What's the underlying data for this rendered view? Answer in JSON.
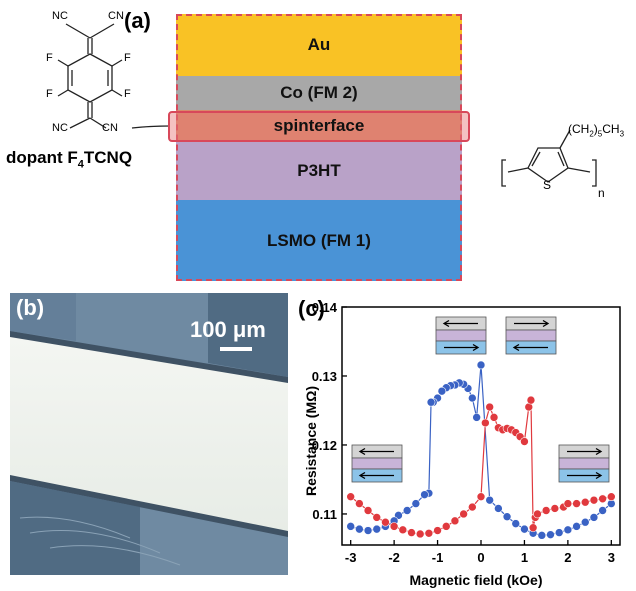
{
  "panel_a": {
    "label": "(a)",
    "layers": [
      {
        "name": "Au",
        "color": "#f9c225"
      },
      {
        "name": "Co (FM 2)",
        "color": "#a8a8a8"
      },
      {
        "name": "spinterface",
        "color": "#d98a6a"
      },
      {
        "name": "P3HT",
        "color": "#b9a2c8"
      },
      {
        "name": "LSMO (FM 1)",
        "color": "#4a93d6"
      }
    ],
    "dopant": {
      "prefix": "dopant F",
      "subscript": "4",
      "suffix": "TCNQ"
    },
    "f4tcnq_atoms": {
      "nc": "NC",
      "cn": "CN",
      "f": "F",
      "n": "N"
    },
    "p3ht_labels": {
      "side_chain": "(CH",
      "side_chain_sub": "2",
      "side_chain_end": ")",
      "side_chain_n": "5",
      "side_chain_tail": "CH",
      "side_chain_tail_sub": "3",
      "s": "S",
      "n": "n"
    }
  },
  "panel_b": {
    "label": "(b)",
    "scale_bar": "100 μm"
  },
  "panel_c": {
    "label": "(c)",
    "chart_data": {
      "type": "scatter",
      "xlabel": "Magnetic field (kOe)",
      "ylabel": "Resistance (MΩ)",
      "xlim": [
        -3.2,
        3.2
      ],
      "ylim": [
        0.1055,
        0.14
      ],
      "xticks": [
        "-3",
        "-2",
        "-1",
        "0",
        "1",
        "2",
        "3"
      ],
      "yticks": [
        "0.11",
        "0.12",
        "0.13",
        "0.14"
      ],
      "series": [
        {
          "color": "#3a62c4",
          "x": [
            3.0,
            2.8,
            2.6,
            2.4,
            2.2,
            2.0,
            1.8,
            1.6,
            1.4,
            1.2,
            1.0,
            0.8,
            0.6,
            0.4,
            0.2,
            0.0,
            -0.1,
            -0.2,
            -0.3,
            -0.4,
            -0.5,
            -0.6,
            -0.7,
            -0.8,
            -0.9,
            -1.0,
            -1.1,
            -1.15,
            -1.2,
            -1.3,
            -1.5,
            -1.7,
            -1.9,
            -2.0,
            -2.2,
            -2.4,
            -2.6,
            -2.8,
            -3.0
          ],
          "y": [
            0.1115,
            0.1105,
            0.1095,
            0.1088,
            0.1082,
            0.1077,
            0.1073,
            0.107,
            0.1069,
            0.1072,
            0.1078,
            0.1086,
            0.1096,
            0.1108,
            0.112,
            0.1316,
            0.124,
            0.1268,
            0.1282,
            0.1288,
            0.129,
            0.1287,
            0.1286,
            0.1283,
            0.1278,
            0.1268,
            0.1262,
            0.1262,
            0.113,
            0.1128,
            0.1115,
            0.1105,
            0.1098,
            0.109,
            0.1082,
            0.1078,
            0.1076,
            0.1078,
            0.1082
          ]
        },
        {
          "color": "#e0393e",
          "x": [
            -3.0,
            -2.8,
            -2.6,
            -2.4,
            -2.2,
            -2.0,
            -1.8,
            -1.6,
            -1.4,
            -1.2,
            -1.0,
            -0.8,
            -0.6,
            -0.4,
            -0.2,
            0.0,
            0.1,
            0.2,
            0.3,
            0.4,
            0.5,
            0.6,
            0.7,
            0.8,
            0.9,
            1.0,
            1.1,
            1.15,
            1.2,
            1.25,
            1.3,
            1.5,
            1.7,
            1.9,
            2.0,
            2.2,
            2.4,
            2.6,
            2.8,
            3.0
          ],
          "y": [
            0.1125,
            0.1115,
            0.1105,
            0.1095,
            0.1088,
            0.1082,
            0.1077,
            0.1073,
            0.1071,
            0.1072,
            0.1076,
            0.1082,
            0.109,
            0.11,
            0.111,
            0.1125,
            0.1232,
            0.1255,
            0.124,
            0.1225,
            0.1222,
            0.1224,
            0.1222,
            0.1218,
            0.1212,
            0.1205,
            0.1255,
            0.1265,
            0.108,
            0.1095,
            0.11,
            0.1105,
            0.1108,
            0.111,
            0.1115,
            0.1115,
            0.1117,
            0.112,
            0.1122,
            0.1125
          ]
        }
      ]
    }
  }
}
